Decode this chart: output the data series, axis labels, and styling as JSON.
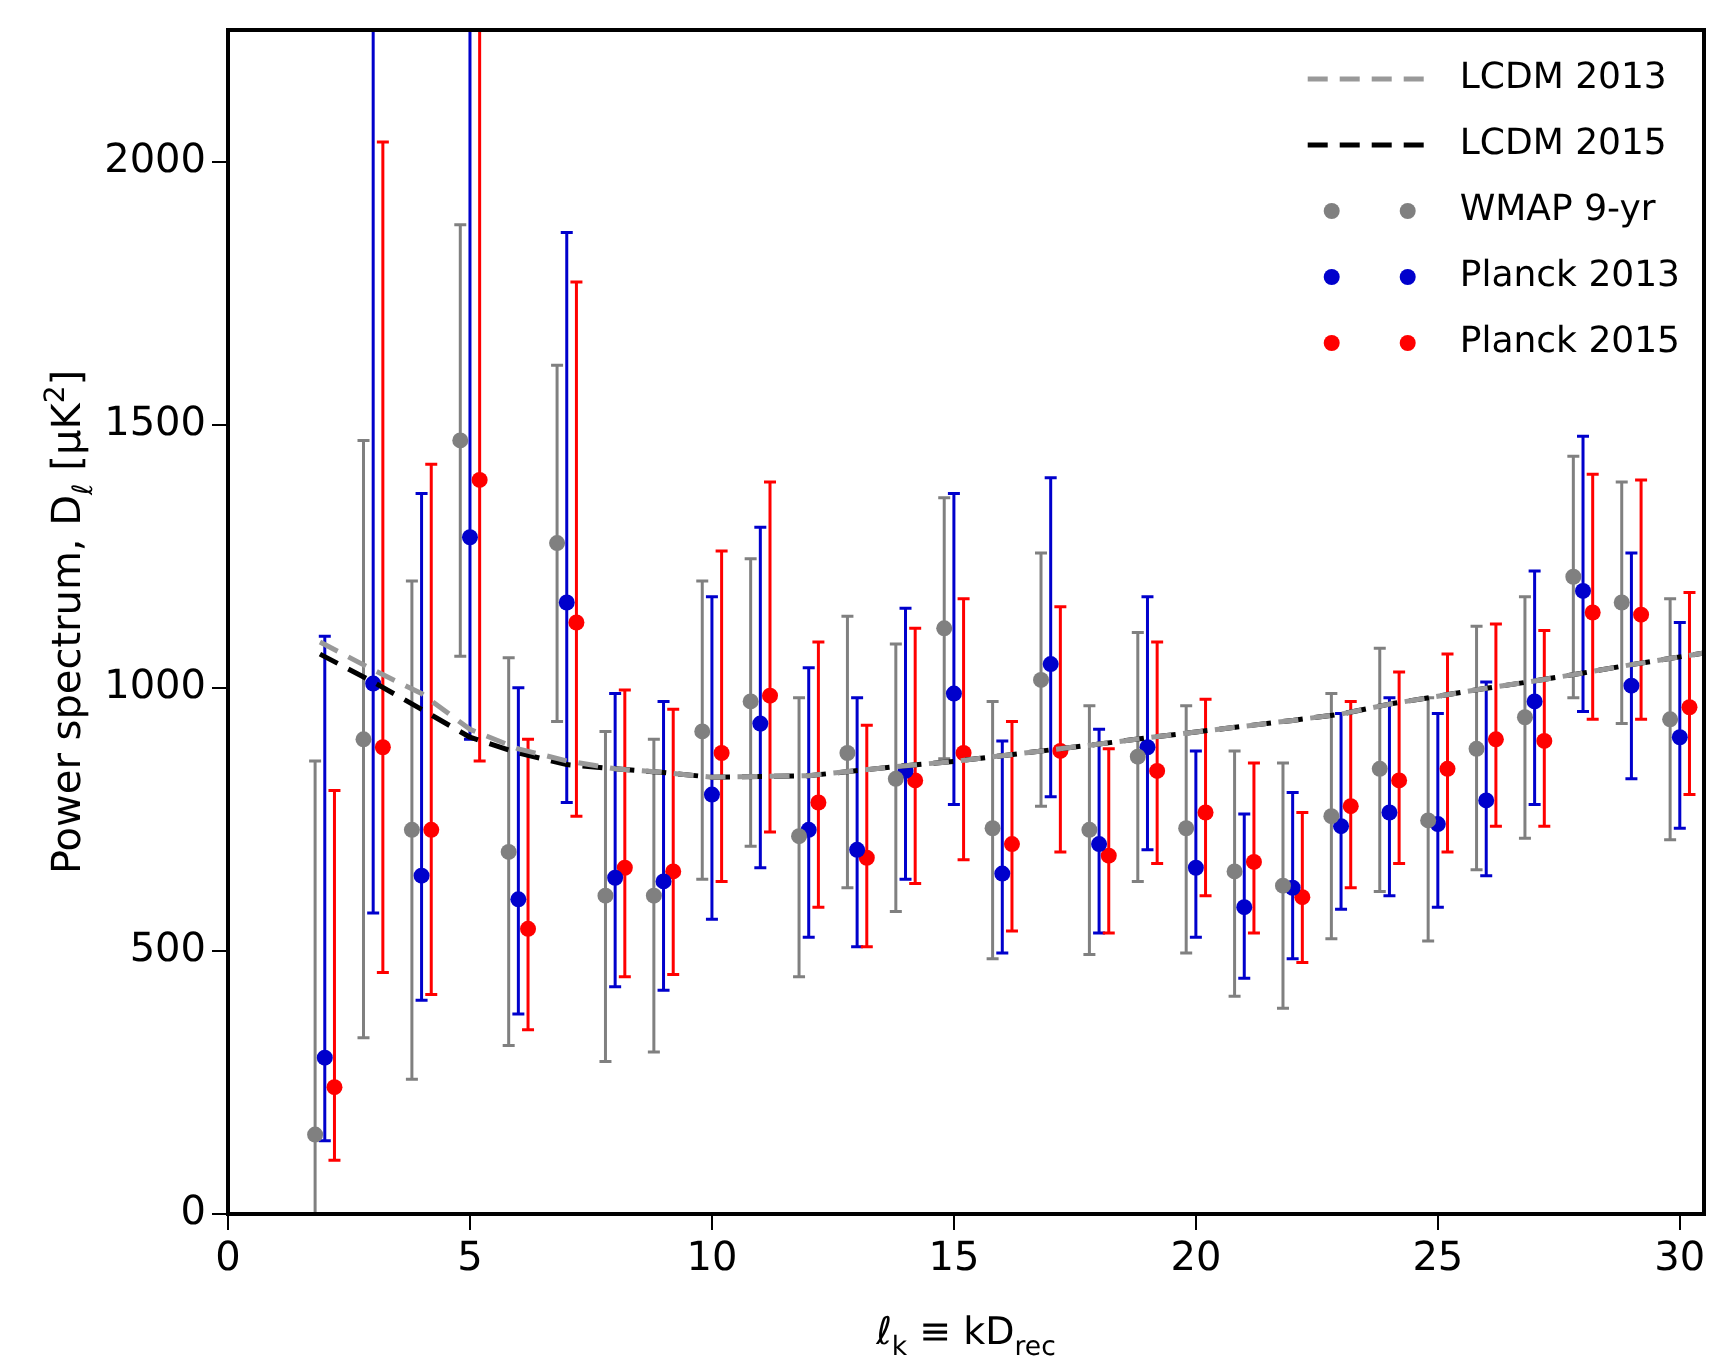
{
  "chart_data": {
    "type": "scatter",
    "xlabel": "ℓ$_{k}$ ≡ kD$_{rec}$",
    "ylabel": "Power spectrum, D$_{ℓ}$ [μK$^{2}$]",
    "xlim": [
      0,
      30.5
    ],
    "xticks": [
      0,
      5,
      10,
      15,
      20,
      25,
      30
    ],
    "ylim": [
      0,
      2250
    ],
    "yticks": [
      0,
      500,
      1000,
      1500,
      2000
    ],
    "grid": false,
    "legend": "top right",
    "series": [
      {
        "name": "LCDM 2013",
        "type": "line",
        "line_style": "dashed",
        "marker": "none",
        "color": "#999999",
        "x": [
          1.9,
          3,
          4,
          5,
          6,
          7,
          8,
          9,
          10,
          12,
          14,
          15,
          16,
          17,
          18,
          19,
          20,
          21,
          22,
          23,
          24,
          25,
          26,
          27,
          28,
          29,
          30.5
        ],
        "values": [
          1087,
          1034,
          989,
          921,
          884,
          861,
          846,
          839,
          830,
          833,
          852,
          860,
          871,
          882,
          893,
          905,
          916,
          927,
          938,
          950,
          969,
          984,
          999,
          1013,
          1028,
          1044,
          1066
        ]
      },
      {
        "name": "LCDM 2015",
        "type": "line",
        "line_style": "dashed",
        "marker": "none",
        "color": "#000000",
        "x": [
          1.9,
          3,
          4,
          5,
          6,
          7,
          8,
          9,
          10,
          12,
          14,
          15,
          16,
          17,
          18,
          19,
          20,
          21,
          22,
          23,
          24,
          25,
          26,
          27,
          28,
          29,
          30.5
        ],
        "values": [
          1064,
          1011,
          959,
          906,
          876,
          854,
          846,
          839,
          830,
          833,
          852,
          860,
          871,
          882,
          893,
          905,
          916,
          927,
          938,
          950,
          969,
          984,
          999,
          1013,
          1028,
          1044,
          1066
        ]
      },
      {
        "name": "WMAP 9-yr",
        "marker": "circle",
        "color": "#808080",
        "x": [
          1.8,
          2.8,
          3.8,
          4.8,
          5.8,
          6.8,
          7.8,
          8.8,
          9.8,
          10.8,
          11.8,
          12.8,
          13.8,
          14.8,
          15.8,
          16.8,
          17.8,
          18.8,
          19.8,
          20.8,
          21.8,
          22.8,
          23.8,
          24.8,
          25.8,
          26.8,
          27.8,
          28.8,
          29.8
        ],
        "values": [
          151,
          902,
          730,
          1470,
          688,
          1275,
          605,
          605,
          917,
          974,
          718,
          876,
          827,
          1113,
          733,
          1015,
          730,
          869,
          733,
          651,
          624,
          756,
          846,
          748,
          884,
          944,
          1211,
          1162,
          940
        ],
        "errors": [
          [
            0,
            861
          ],
          [
            335,
            1470
          ],
          [
            256,
            1203
          ],
          [
            1060,
            1880
          ],
          [
            320,
            1057
          ],
          [
            936,
            1613
          ],
          [
            290,
            917
          ],
          [
            308,
            902
          ],
          [
            636,
            1203
          ],
          [
            699,
            1245
          ],
          [
            451,
            981
          ],
          [
            620,
            1136
          ],
          [
            575,
            1083
          ],
          [
            865,
            1361
          ],
          [
            485,
            974
          ],
          [
            775,
            1256
          ],
          [
            493,
            966
          ],
          [
            632,
            1105
          ],
          [
            496,
            966
          ],
          [
            414,
            880
          ],
          [
            391,
            857
          ],
          [
            523,
            989
          ],
          [
            613,
            1075
          ],
          [
            519,
            981
          ],
          [
            654,
            1117
          ],
          [
            714,
            1173
          ],
          [
            981,
            1440
          ],
          [
            932,
            1391
          ],
          [
            711,
            1169
          ]
        ]
      },
      {
        "name": "Planck 2013",
        "marker": "circle",
        "color": "#0000cc",
        "x": [
          2,
          3,
          4,
          5,
          6,
          7,
          8,
          9,
          10,
          11,
          12,
          13,
          14,
          15,
          16,
          17,
          18,
          19,
          20,
          21,
          22,
          23,
          24,
          25,
          26,
          27,
          28,
          29,
          30
        ],
        "values": [
          297,
          1008,
          643,
          1286,
          598,
          1162,
          639,
          632,
          797,
          932,
          730,
          692,
          842,
          989,
          647,
          1045,
          703,
          887,
          658,
          583,
          620,
          737,
          763,
          741,
          786,
          974,
          1184,
          1004,
          906
        ],
        "errors": [
          [
            139,
            1098
          ],
          [
            572,
            2250
          ],
          [
            406,
            1369
          ],
          [
            902,
            2250
          ],
          [
            380,
            1000
          ],
          [
            782,
            1865
          ],
          [
            432,
            989
          ],
          [
            425,
            974
          ],
          [
            560,
            1173
          ],
          [
            658,
            1305
          ],
          [
            526,
            1038
          ],
          [
            508,
            981
          ],
          [
            636,
            1151
          ],
          [
            778,
            1369
          ],
          [
            496,
            899
          ],
          [
            793,
            1399
          ],
          [
            534,
            921
          ],
          [
            692,
            1173
          ],
          [
            526,
            880
          ],
          [
            448,
            760
          ],
          [
            485,
            801
          ],
          [
            579,
            951
          ],
          [
            605,
            981
          ],
          [
            583,
            951
          ],
          [
            643,
            1011
          ],
          [
            778,
            1222
          ],
          [
            955,
            1478
          ],
          [
            827,
            1256
          ],
          [
            733,
            1124
          ]
        ]
      },
      {
        "name": "Planck 2015",
        "marker": "circle",
        "color": "#ff0000",
        "x": [
          2.2,
          3.2,
          4.2,
          5.2,
          6.2,
          7.2,
          8.2,
          9.2,
          10.2,
          11.2,
          12.2,
          13.2,
          14.2,
          15.2,
          16.2,
          17.2,
          18.2,
          19.2,
          20.2,
          21.2,
          22.2,
          23.2,
          24.2,
          25.2,
          26.2,
          27.2,
          28.2,
          29.2,
          30.2
        ],
        "values": [
          241,
          887,
          730,
          1395,
          542,
          1124,
          658,
          651,
          876,
          985,
          782,
          677,
          824,
          876,
          703,
          880,
          681,
          842,
          763,
          669,
          602,
          775,
          824,
          846,
          902,
          899,
          1143,
          1139,
          963
        ],
        "errors": [
          [
            102,
            805
          ],
          [
            459,
            2037
          ],
          [
            417,
            1425
          ],
          [
            861,
            2250
          ],
          [
            350,
            902
          ],
          [
            756,
            1771
          ],
          [
            451,
            996
          ],
          [
            455,
            959
          ],
          [
            632,
            1260
          ],
          [
            726,
            1391
          ],
          [
            583,
            1087
          ],
          [
            508,
            929
          ],
          [
            628,
            1113
          ],
          [
            673,
            1169
          ],
          [
            538,
            936
          ],
          [
            688,
            1154
          ],
          [
            534,
            884
          ],
          [
            666,
            1087
          ],
          [
            605,
            978
          ],
          [
            534,
            857
          ],
          [
            478,
            763
          ],
          [
            620,
            974
          ],
          [
            666,
            1030
          ],
          [
            688,
            1064
          ],
          [
            737,
            1121
          ],
          [
            737,
            1109
          ],
          [
            940,
            1406
          ],
          [
            940,
            1395
          ],
          [
            797,
            1181
          ]
        ]
      }
    ]
  }
}
